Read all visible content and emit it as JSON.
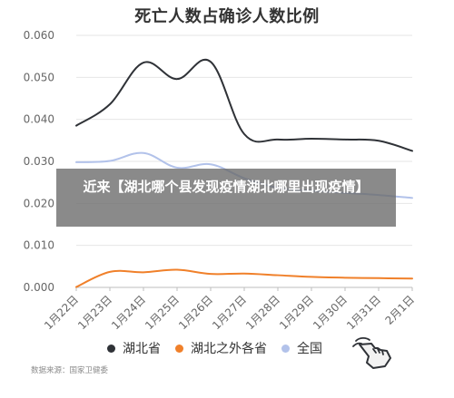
{
  "overlay": {
    "text": "近来【湖北哪个县发现疫情湖北哪里出现疫情】"
  },
  "source": "数据来源：国家卫健委",
  "chart_data": {
    "type": "line",
    "title": "死亡人数占确诊人数比例",
    "categories": [
      "1月22日",
      "1月23日",
      "1月24日",
      "1月25日",
      "1月26日",
      "1月27日",
      "1月28日",
      "1月29日",
      "1月30日",
      "1月31日",
      "2月1日"
    ],
    "series": [
      {
        "name": "湖北省",
        "color": "#2f3237",
        "values": [
          0.0385,
          0.0436,
          0.0535,
          0.0496,
          0.0537,
          0.0365,
          0.0352,
          0.0354,
          0.0352,
          0.0349,
          0.0325
        ]
      },
      {
        "name": "湖北之外各省",
        "color": "#f0802a",
        "values": [
          0.0001,
          0.0037,
          0.0036,
          0.0042,
          0.0032,
          0.0033,
          0.0029,
          0.0025,
          0.0023,
          0.0022,
          0.0021
        ]
      },
      {
        "name": "全国",
        "color": "#b2c2ea",
        "values": [
          0.0298,
          0.0301,
          0.032,
          0.0285,
          0.0293,
          0.026,
          0.0237,
          0.023,
          0.0225,
          0.022,
          0.0213
        ]
      }
    ],
    "ylim": [
      0,
      0.06
    ],
    "yticks": [
      "0.000",
      "0.010",
      "0.020",
      "0.030",
      "0.040",
      "0.050",
      "0.060"
    ],
    "legend": "bottom",
    "grid": true
  }
}
